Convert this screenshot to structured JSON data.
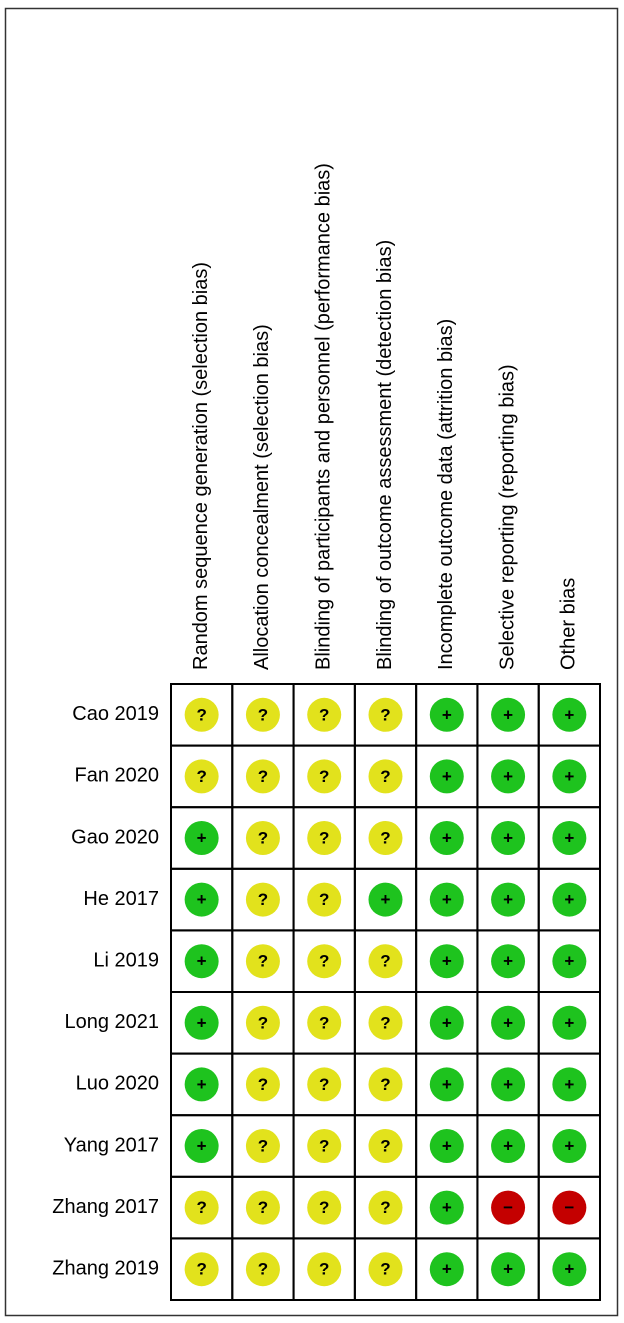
{
  "columns": [
    "Random sequence generation (selection bias)",
    "Allocation concealment (selection bias)",
    "Blinding of participants and personnel (performance bias)",
    "Blinding of outcome assessment (detection bias)",
    "Incomplete outcome data (attrition bias)",
    "Selective reporting (reporting bias)",
    "Other bias"
  ],
  "palette": {
    "+": "#1ec31e",
    "?": "#e2e21c",
    "−": "#c40000"
  },
  "rows": [
    {
      "label": "Cao 2019",
      "cells": [
        "?",
        "?",
        "?",
        "?",
        "+",
        "+",
        "+"
      ]
    },
    {
      "label": "Fan 2020",
      "cells": [
        "?",
        "?",
        "?",
        "?",
        "+",
        "+",
        "+"
      ]
    },
    {
      "label": "Gao 2020",
      "cells": [
        "+",
        "?",
        "?",
        "?",
        "+",
        "+",
        "+"
      ]
    },
    {
      "label": "He 2017",
      "cells": [
        "+",
        "?",
        "?",
        "+",
        "+",
        "+",
        "+"
      ]
    },
    {
      "label": "Li 2019",
      "cells": [
        "+",
        "?",
        "?",
        "?",
        "+",
        "+",
        "+"
      ]
    },
    {
      "label": "Long 2021",
      "cells": [
        "+",
        "?",
        "?",
        "?",
        "+",
        "+",
        "+"
      ]
    },
    {
      "label": "Luo 2020",
      "cells": [
        "+",
        "?",
        "?",
        "?",
        "+",
        "+",
        "+"
      ]
    },
    {
      "label": "Yang 2017",
      "cells": [
        "+",
        "?",
        "?",
        "?",
        "+",
        "+",
        "+"
      ]
    },
    {
      "label": "Zhang 2017",
      "cells": [
        "?",
        "?",
        "?",
        "?",
        "+",
        "−",
        "−"
      ]
    },
    {
      "label": "Zhang 2019",
      "cells": [
        "?",
        "?",
        "?",
        "?",
        "+",
        "+",
        "+"
      ]
    }
  ]
}
